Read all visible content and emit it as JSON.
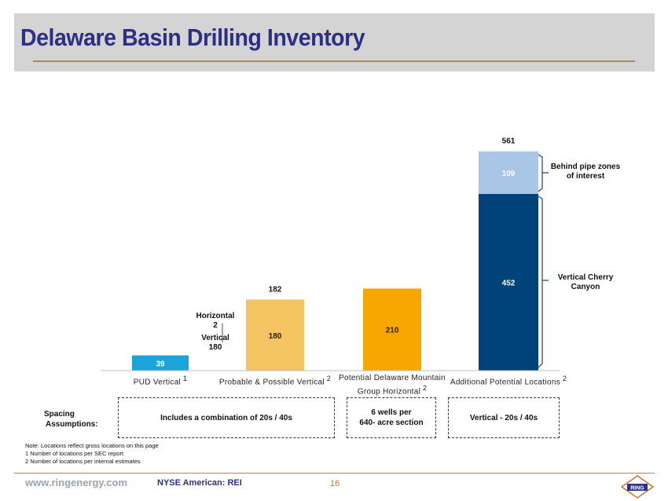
{
  "title": "Delaware Basin Drilling Inventory",
  "chart_data": {
    "type": "bar",
    "stacked": true,
    "categories": [
      {
        "label": "PUD Vertical",
        "note": "1"
      },
      {
        "label": "Probable & Possible Vertical",
        "note": "2"
      },
      {
        "label": "Potential Delaware Mountain Group Horizontal",
        "note": "2"
      },
      {
        "label": "Additional Potential Locations",
        "note": "2"
      }
    ],
    "series": [
      {
        "name": "Base",
        "values": [
          39,
          180,
          210,
          452
        ],
        "value_labels": [
          "39",
          "180",
          "210",
          "452"
        ],
        "colors": [
          "#1ba4d9",
          "#f4c462",
          "#f8a700",
          "#00427a"
        ]
      },
      {
        "name": "Top",
        "values": [
          0,
          2,
          0,
          109
        ],
        "value_labels": [
          "",
          "",
          "",
          "109"
        ],
        "colors": [
          "#1ba4d9",
          "#f4c462",
          "#f8a700",
          "#a9c6e6"
        ]
      }
    ],
    "totals": [
      "",
      "182",
      "",
      "561"
    ],
    "ylim": [
      0,
      600
    ],
    "annotations": {
      "breakdown_horizontal": [
        "Horizontal",
        "2"
      ],
      "breakdown_vertical": [
        "Vertical",
        "180"
      ],
      "bracket_top": [
        "Behind pipe zones",
        "of interest"
      ],
      "bracket_bottom": [
        "Vertical Cherry",
        "Canyon"
      ]
    }
  },
  "spacing": {
    "label": [
      "Spacing",
      "Assumptions:"
    ],
    "boxes": [
      [
        "Includes a combination of 20s / 40s"
      ],
      [
        "6 wells per",
        "640- acre section"
      ],
      [
        "Vertical - 20s / 40s"
      ]
    ]
  },
  "notes": [
    "Note: Locations reflect gross locations on this page",
    "1 Number of locations per SEC report",
    "2 Number of locations per internal estimates"
  ],
  "footer": {
    "url": "www.ringenergy.com",
    "ticker": "NYSE American: REI",
    "page": "16",
    "logo_text": "RING"
  }
}
